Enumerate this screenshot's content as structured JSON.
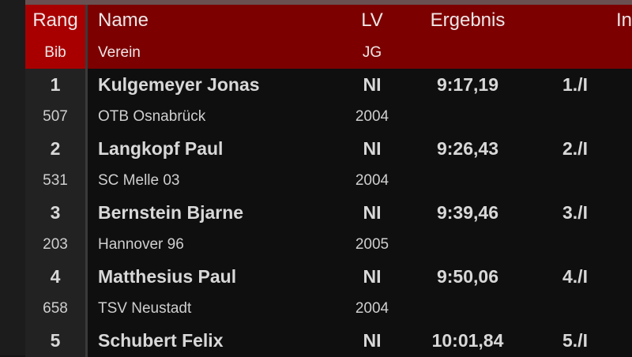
{
  "header": {
    "rang": "Rang",
    "bib": "Bib",
    "name": "Name",
    "verein": "Verein",
    "lv": "LV",
    "jg": "JG",
    "ergebnis": "Ergebnis",
    "info": "In"
  },
  "colors": {
    "header_rank_bg": "#a80000",
    "header_bg": "#7c0000",
    "row_bg": "#0f0f0f"
  },
  "rows": [
    {
      "rang": "1",
      "bib": "507",
      "name": "Kulgemeyer Jonas",
      "verein": "OTB Osnabrück",
      "lv": "NI",
      "jg": "2004",
      "ergebnis": "9:17,19",
      "platz": "1./I"
    },
    {
      "rang": "2",
      "bib": "531",
      "name": "Langkopf Paul",
      "verein": "SC Melle 03",
      "lv": "NI",
      "jg": "2004",
      "ergebnis": "9:26,43",
      "platz": "2./I"
    },
    {
      "rang": "3",
      "bib": "203",
      "name": "Bernstein Bjarne",
      "verein": "Hannover 96",
      "lv": "NI",
      "jg": "2005",
      "ergebnis": "9:39,46",
      "platz": "3./I"
    },
    {
      "rang": "4",
      "bib": "658",
      "name": "Matthesius Paul",
      "verein": "TSV Neustadt",
      "lv": "NI",
      "jg": "2004",
      "ergebnis": "9:50,06",
      "platz": "4./I"
    },
    {
      "rang": "5",
      "name": "Schubert Felix",
      "lv": "NI",
      "ergebnis": "10:01,84",
      "platz": "5./I"
    }
  ]
}
